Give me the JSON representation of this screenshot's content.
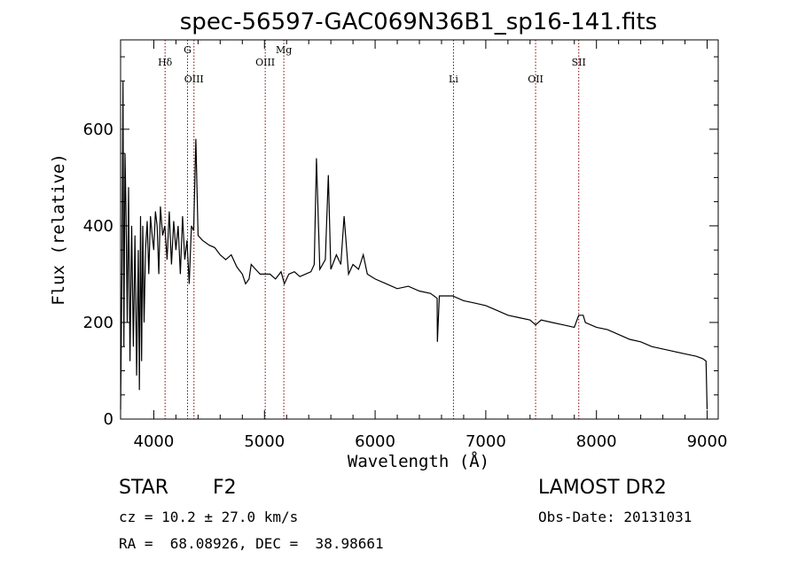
{
  "chart_data": {
    "type": "line",
    "title": "spec-56597-GAC069N36B1_sp16-141.fits",
    "xlabel": "Wavelength (Å)",
    "ylabel": "Flux (relative)",
    "xlim": [
      3700,
      9100
    ],
    "ylim": [
      0,
      785
    ],
    "xticks": [
      4000,
      5000,
      6000,
      7000,
      8000,
      9000
    ],
    "yticks": [
      0,
      200,
      400,
      600
    ],
    "grid": false,
    "series": [
      {
        "x": [
          3700,
          3712,
          3722,
          3730,
          3740,
          3750,
          3760,
          3772,
          3785,
          3800,
          3815,
          3830,
          3845,
          3860,
          3870,
          3880,
          3890,
          3900,
          3912,
          3925,
          3940,
          3955,
          3970,
          3985,
          4000,
          4015,
          4030,
          4045,
          4060,
          4080,
          4100,
          4120,
          4140,
          4160,
          4180,
          4200,
          4220,
          4240,
          4260,
          4280,
          4300,
          4320,
          4340,
          4360,
          4380,
          4400,
          4440,
          4500,
          4550,
          4600,
          4650,
          4700,
          4750,
          4800,
          4830,
          4861,
          4880,
          4920,
          4960,
          5000,
          5050,
          5100,
          5150,
          5180,
          5220,
          5270,
          5320,
          5370,
          5420,
          5450,
          5470,
          5500,
          5550,
          5577,
          5600,
          5650,
          5690,
          5720,
          5760,
          5800,
          5850,
          5893,
          5930,
          6000,
          6100,
          6200,
          6300,
          6400,
          6500,
          6560,
          6563,
          6580,
          6700,
          6800,
          6900,
          7000,
          7100,
          7200,
          7300,
          7400,
          7450,
          7500,
          7600,
          7700,
          7800,
          7840,
          7880,
          7900,
          8000,
          8100,
          8200,
          8300,
          8400,
          8500,
          8600,
          8700,
          8800,
          8900,
          8960,
          8990,
          9000
        ],
        "values": [
          20,
          300,
          700,
          150,
          550,
          420,
          200,
          480,
          120,
          400,
          150,
          380,
          90,
          350,
          60,
          420,
          120,
          400,
          200,
          350,
          410,
          300,
          420,
          380,
          350,
          430,
          400,
          300,
          440,
          380,
          400,
          330,
          430,
          320,
          410,
          350,
          400,
          300,
          420,
          330,
          370,
          280,
          400,
          390,
          580,
          380,
          370,
          360,
          355,
          340,
          330,
          340,
          315,
          300,
          280,
          290,
          320,
          310,
          300,
          300,
          300,
          290,
          305,
          280,
          300,
          305,
          295,
          300,
          305,
          320,
          540,
          310,
          330,
          505,
          310,
          340,
          320,
          420,
          300,
          320,
          310,
          340,
          300,
          290,
          280,
          270,
          275,
          265,
          260,
          250,
          160,
          255,
          255,
          245,
          240,
          235,
          225,
          215,
          210,
          205,
          195,
          205,
          200,
          195,
          190,
          215,
          215,
          200,
          190,
          185,
          175,
          165,
          160,
          150,
          145,
          140,
          135,
          130,
          125,
          120,
          20
        ]
      }
    ],
    "lines": [
      {
        "label": "Hδ",
        "x": 4102
      },
      {
        "label": "G",
        "x": 4305
      },
      {
        "label": "OIII",
        "x": 4363
      },
      {
        "label": "OIII",
        "x": 5007
      },
      {
        "label": "Mg",
        "x": 5175
      },
      {
        "label": "Li",
        "x": 6708
      },
      {
        "label": "OII",
        "x": 7450
      },
      {
        "label": "SII",
        "x": 7840
      }
    ]
  },
  "info": {
    "object_class": "STAR",
    "subclass": "F2",
    "survey": "LAMOST DR2",
    "redshift": "cz = 10.2 ± 27.0 km/s",
    "obs_date": "Obs-Date: 20131031",
    "coords": "RA =  68.08926, DEC =  38.98661"
  },
  "colors": {
    "spectrum": "#000000",
    "line_markers": "#8b0000",
    "background": "#ffffff"
  }
}
